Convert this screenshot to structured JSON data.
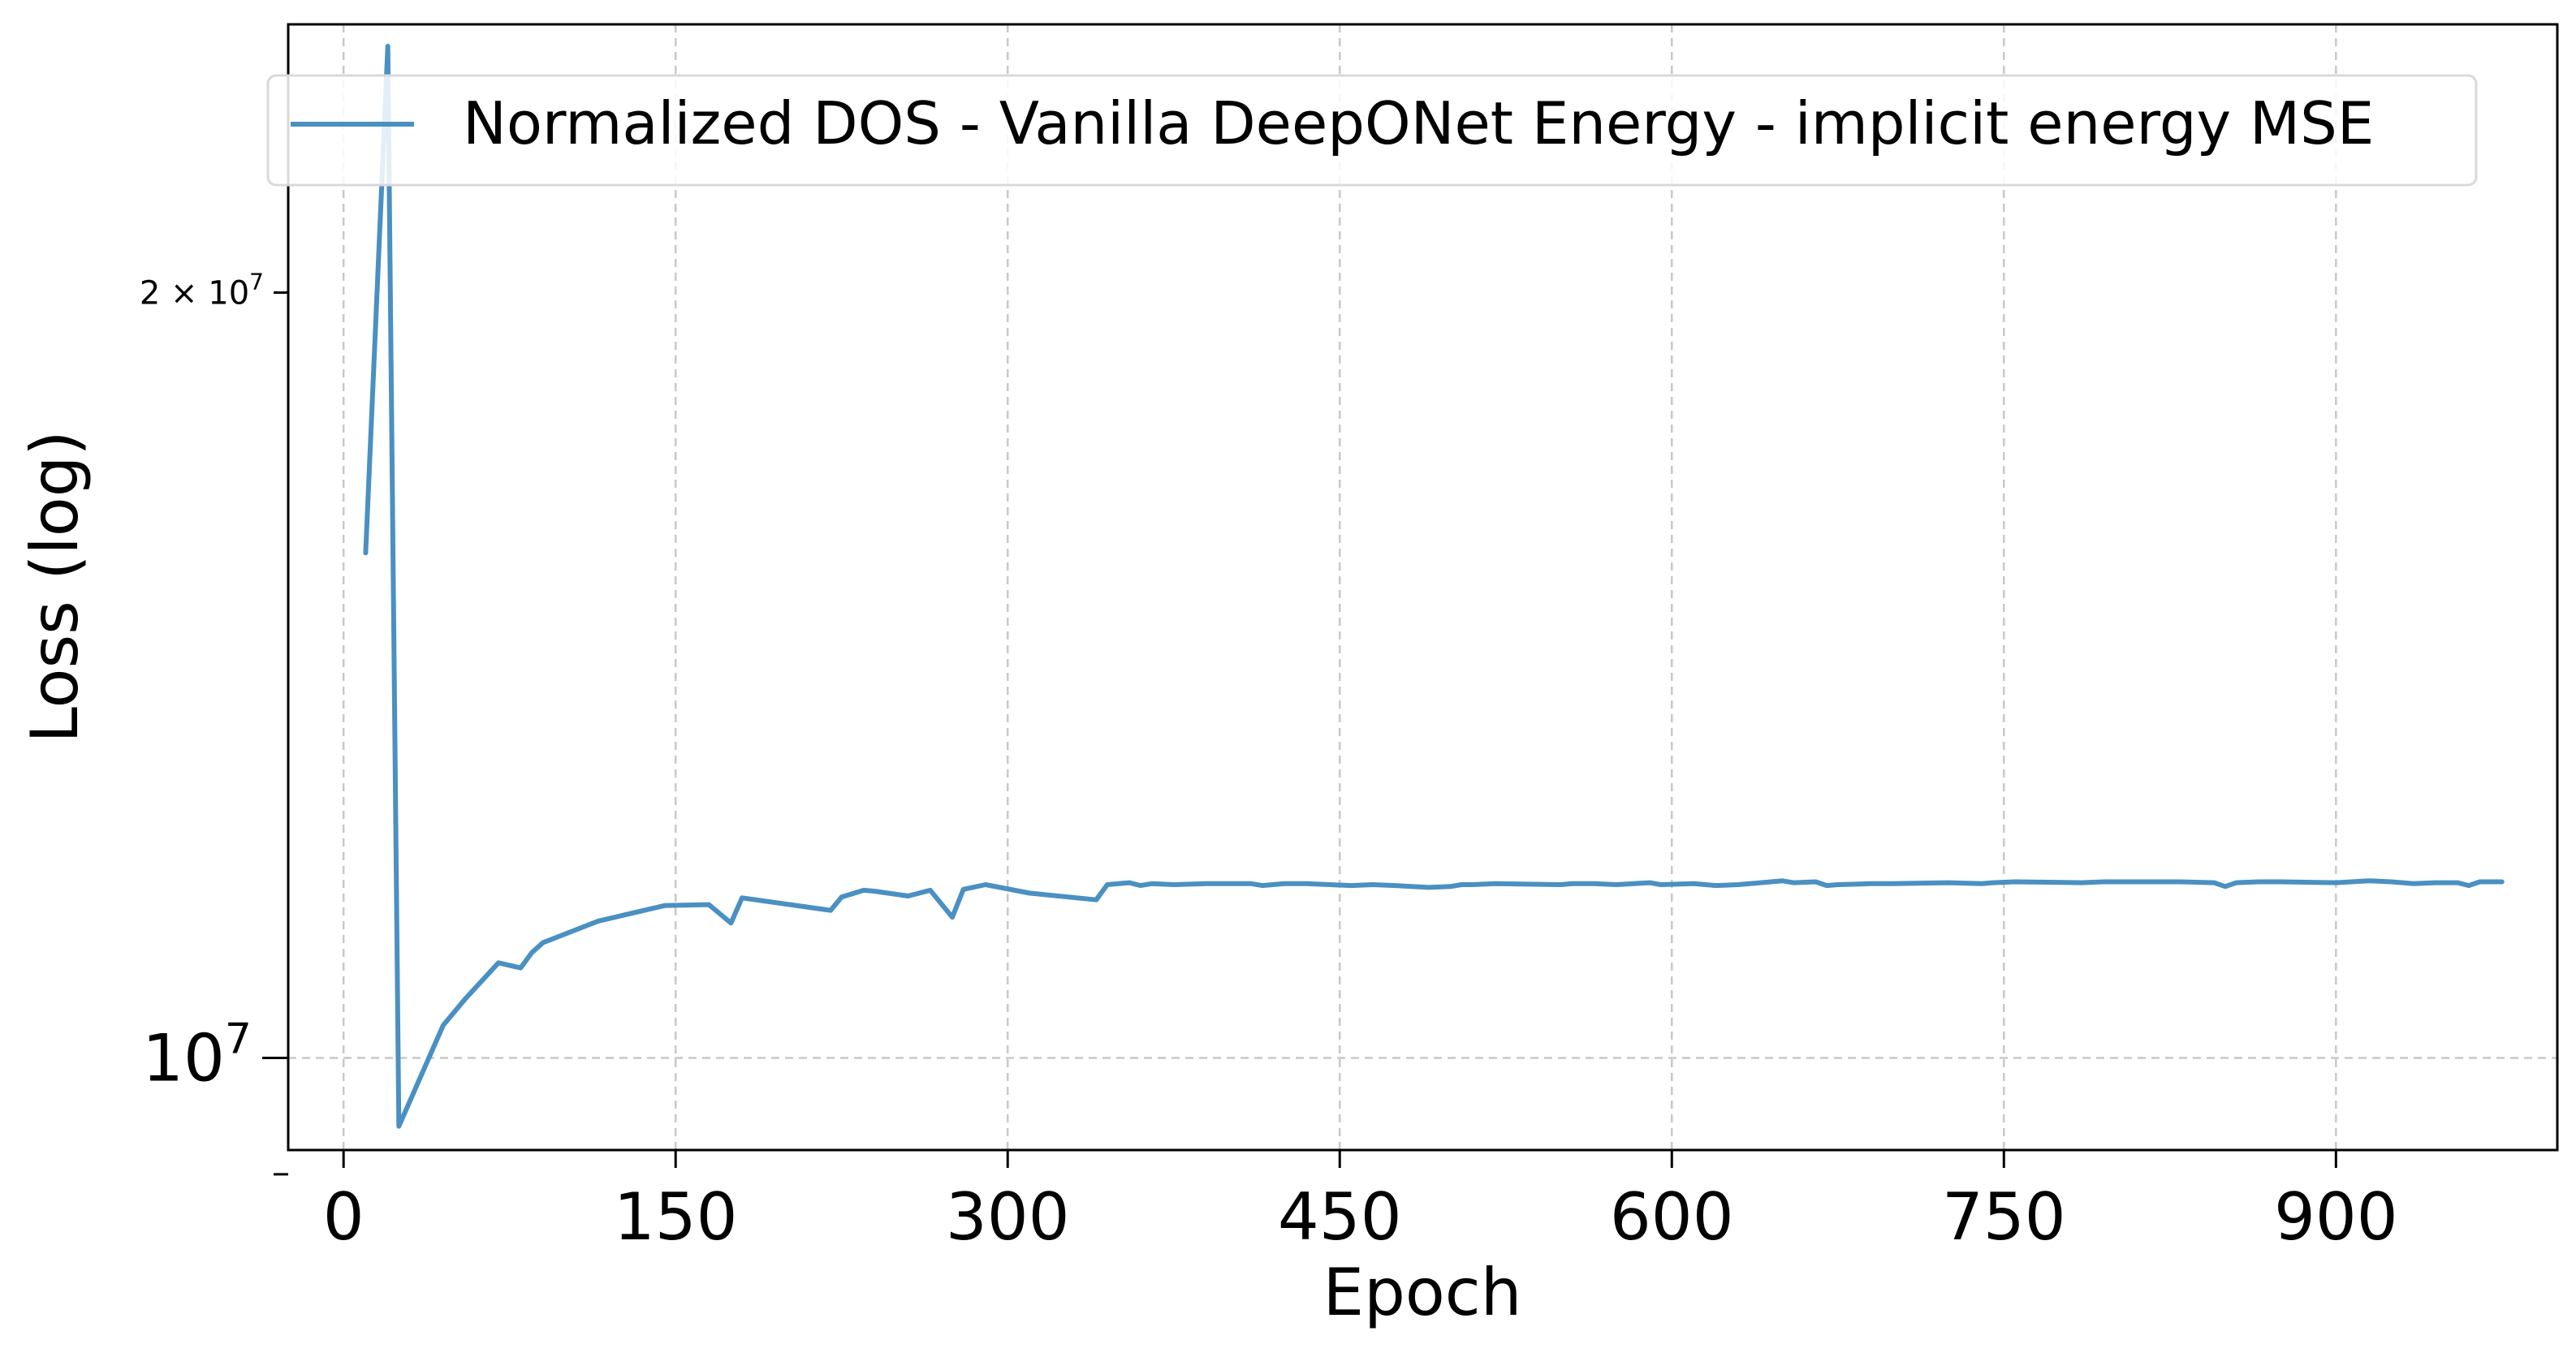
{
  "chart_data": {
    "type": "line",
    "xlabel": "Epoch",
    "ylabel": "Loss (log)",
    "yscale": "log",
    "grid": true,
    "legend_position": "top",
    "xlim": [
      -25,
      1000
    ],
    "ylim": [
      9200000,
      25500000
    ],
    "x_ticks": [
      0,
      150,
      300,
      450,
      600,
      750,
      900
    ],
    "x_tick_labels": [
      "0",
      "150",
      "300",
      "450",
      "600",
      "750",
      "900"
    ],
    "y_major_tick": {
      "value": 10000000,
      "base": "10",
      "exponent": "7"
    },
    "y_minor_tick": {
      "value": 20000000,
      "coefficient": "2",
      "base": "10",
      "exponent": "7"
    },
    "y_unlabeled_minor_ticks": [
      9000000
    ],
    "series": [
      {
        "name": "Normalized DOS - Vanilla DeepONet Energy - implicit energy MSE",
        "color": "#4a90c2",
        "x": [
          10,
          20,
          25,
          45,
          55,
          70,
          80,
          85,
          90,
          115,
          145,
          165,
          175,
          180,
          220,
          225,
          235,
          240,
          255,
          265,
          275,
          280,
          290,
          310,
          340,
          345,
          355,
          360,
          365,
          375,
          390,
          410,
          415,
          425,
          435,
          455,
          465,
          475,
          490,
          500,
          505,
          510,
          520,
          550,
          555,
          565,
          575,
          590,
          595,
          610,
          620,
          630,
          650,
          655,
          665,
          670,
          675,
          690,
          700,
          725,
          740,
          745,
          755,
          785,
          795,
          830,
          845,
          850,
          855,
          865,
          875,
          900,
          915,
          925,
          935,
          945,
          955,
          960,
          965,
          975
        ],
        "values": [
          15800000,
          25000000,
          9400000,
          10300000,
          10550000,
          10900000,
          10850000,
          11000000,
          11100000,
          11320000,
          11480000,
          11490000,
          11300000,
          11560000,
          11430000,
          11570000,
          11640000,
          11630000,
          11580000,
          11640000,
          11360000,
          11650000,
          11700000,
          11610000,
          11540000,
          11700000,
          11720000,
          11690000,
          11710000,
          11700000,
          11710000,
          11710000,
          11690000,
          11710000,
          11710000,
          11690000,
          11700000,
          11690000,
          11670000,
          11680000,
          11700000,
          11700000,
          11710000,
          11700000,
          11710000,
          11710000,
          11700000,
          11720000,
          11700000,
          11710000,
          11690000,
          11700000,
          11740000,
          11720000,
          11730000,
          11690000,
          11700000,
          11710000,
          11710000,
          11720000,
          11710000,
          11720000,
          11730000,
          11720000,
          11730000,
          11730000,
          11720000,
          11680000,
          11720000,
          11730000,
          11730000,
          11720000,
          11740000,
          11730000,
          11710000,
          11720000,
          11720000,
          11690000,
          11730000,
          11730000
        ]
      }
    ]
  }
}
